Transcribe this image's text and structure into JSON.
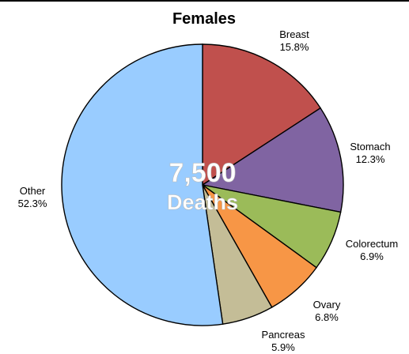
{
  "chart_data": {
    "type": "pie",
    "title": "Females",
    "center_label": {
      "line1": "7,500",
      "line2": "Deaths"
    },
    "categories": [
      "Breast",
      "Stomach",
      "Colorectum",
      "Ovary",
      "Pancreas",
      "Other"
    ],
    "values": [
      15.8,
      12.3,
      6.9,
      6.8,
      5.9,
      52.3
    ],
    "value_labels": [
      "15.8%",
      "12.3%",
      "6.9%",
      "6.8%",
      "5.9%",
      "52.3%"
    ],
    "colors": [
      "#C0504D",
      "#8064A2",
      "#9BBB59",
      "#F79646",
      "#C4BD97",
      "#99CCFF"
    ],
    "start": "12 o'clock",
    "direction": "clockwise",
    "legend": "none"
  }
}
